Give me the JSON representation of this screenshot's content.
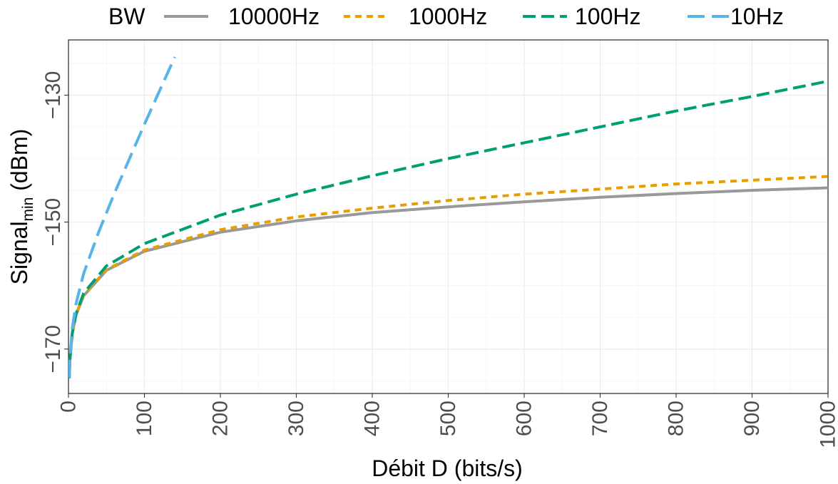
{
  "chart_data": {
    "type": "line",
    "xlabel": "Débit D (bits/s)",
    "ylabel_main": "Signal",
    "ylabel_sub": "min",
    "ylabel_unit": " (dBm)",
    "xlim": [
      0,
      1000
    ],
    "ylim": [
      -177,
      -121.3
    ],
    "x_ticks": [
      0,
      100,
      200,
      300,
      400,
      500,
      600,
      700,
      800,
      900,
      1000
    ],
    "x_tick_labels": [
      "0",
      "100",
      "200",
      "300",
      "400",
      "500",
      "600",
      "700",
      "800",
      "900",
      "1000"
    ],
    "y_ticks": [
      -170,
      -150,
      -130
    ],
    "y_tick_labels": [
      "−170",
      "−150",
      "−130"
    ],
    "grid": true,
    "legend": {
      "title": "BW",
      "position": "top"
    },
    "series": [
      {
        "name": "10000Hz",
        "color": "#999999",
        "dash": "solid",
        "x": [
          1,
          2,
          5,
          10,
          20,
          50,
          100,
          200,
          300,
          400,
          500,
          600,
          700,
          800,
          900,
          1000
        ],
        "y": [
          -174.6,
          -171.6,
          -167.6,
          -164.6,
          -161.6,
          -157.6,
          -154.6,
          -151.6,
          -149.8,
          -148.5,
          -147.6,
          -146.8,
          -146.1,
          -145.5,
          -145.0,
          -144.6
        ]
      },
      {
        "name": "1000Hz",
        "color": "#E69F00",
        "dash": "dotted",
        "x": [
          1,
          2,
          5,
          10,
          20,
          50,
          100,
          200,
          300,
          400,
          500,
          600,
          700,
          800,
          900,
          1000
        ],
        "y": [
          -174.6,
          -171.6,
          -167.6,
          -164.5,
          -161.5,
          -157.5,
          -154.4,
          -151.2,
          -149.2,
          -147.8,
          -146.6,
          -145.6,
          -144.8,
          -144.0,
          -143.4,
          -142.8
        ]
      },
      {
        "name": "100Hz",
        "color": "#009E73",
        "dash": "dashed",
        "x": [
          1,
          2,
          5,
          10,
          20,
          50,
          100,
          200,
          300,
          400,
          500,
          600,
          700,
          800,
          900,
          1000
        ],
        "y": [
          -174.6,
          -171.6,
          -167.5,
          -164.4,
          -161.2,
          -156.9,
          -153.4,
          -148.9,
          -145.6,
          -142.7,
          -140.0,
          -137.5,
          -135.0,
          -132.5,
          -130.2,
          -127.8
        ]
      },
      {
        "name": "10Hz",
        "color": "#56B4E9",
        "dash": "longdash",
        "x": [
          1,
          2,
          5,
          10,
          20,
          40,
          60,
          80,
          100,
          120,
          140
        ],
        "y": [
          -174.5,
          -171.3,
          -166.8,
          -162.8,
          -158.1,
          -151.5,
          -145.6,
          -140.1,
          -134.6,
          -129.3,
          -124.0
        ]
      }
    ]
  }
}
